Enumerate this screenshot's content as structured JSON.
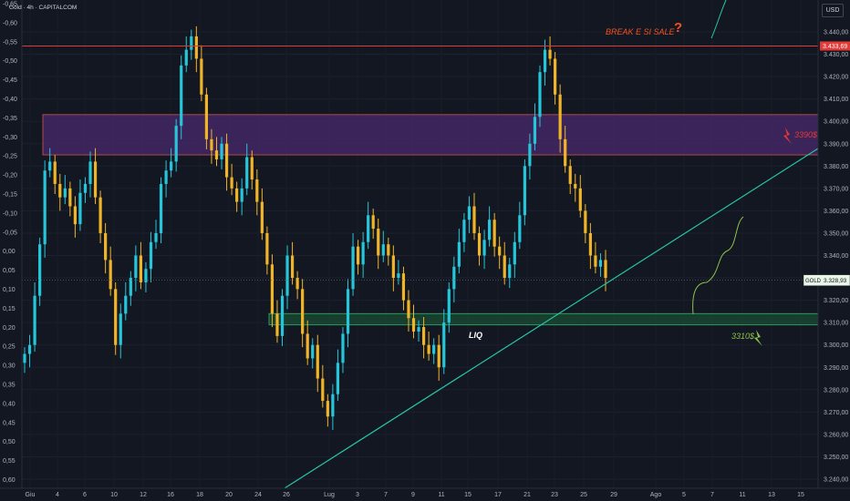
{
  "header": {
    "symbol_info": "Gold · 4h · CAPITALCOM",
    "currency": "USD"
  },
  "price_tag": {
    "symbol": "GOLD",
    "last_price": "3.328,93",
    "red_line_price": "3.433,69"
  },
  "annotations": {
    "break_text": "BREAK E SI SALE",
    "question_mark": "?",
    "zone_high_label": "3390$",
    "zone_low_label": "3310$",
    "liq_label": "LIQ"
  },
  "colors": {
    "up": "#26c6da",
    "down": "#f0b429",
    "background": "#131722",
    "red_level": "#e53935",
    "resistance_zone": "#4a2a6e",
    "support_zone": "#1b5e3a",
    "trendline": "#26c6a6",
    "annotation_orange": "#f4511e",
    "annotation_green": "#8bc34a"
  },
  "chart_data": {
    "type": "candlestick",
    "title": "Gold · 4h · CAPITALCOM",
    "right_axis": {
      "unit": "USD",
      "range": [
        3237,
        3446
      ],
      "ticks": [
        "3.440,00",
        "3.430,00",
        "3.420,00",
        "3.410,00",
        "3.400,00",
        "3.390,00",
        "3.380,00",
        "3.370,00",
        "3.360,00",
        "3.350,00",
        "3.340,00",
        "3.330,00",
        "3.320,00",
        "3.310,00",
        "3.300,00",
        "3.290,00",
        "3.280,00",
        "3.270,00",
        "3.260,00",
        "3.250,00",
        "3.240,00"
      ]
    },
    "left_axis": {
      "ticks": [
        "-0,65",
        "-0,60",
        "-0,55",
        "-0,50",
        "-0,45",
        "-0,40",
        "-0,35",
        "-0,30",
        "-0,25",
        "-0,20",
        "-0,15",
        "-0,10",
        "-0,05",
        "0,00",
        "0,05",
        "0,10",
        "0,15",
        "0,20",
        "0,25",
        "0,30",
        "0,35",
        "0,40",
        "0,45",
        "0,50",
        "0,55",
        "0,60"
      ]
    },
    "x_axis": {
      "ticks": [
        "Giu",
        "4",
        "6",
        "10",
        "12",
        "16",
        "18",
        "20",
        "24",
        "26",
        "Lug",
        "3",
        "7",
        "9",
        "11",
        "15",
        "17",
        "21",
        "23",
        "25",
        "29",
        "Ago",
        "5",
        "7",
        "11",
        "13",
        "15"
      ]
    },
    "levels": {
      "red_line": 3433.69,
      "resistance_zone": [
        3385,
        3403
      ],
      "support_zone": [
        3309,
        3314
      ],
      "last_price": 3328.93
    },
    "trendline": {
      "from": [
        "Jun 26",
        3236
      ],
      "to": [
        "Aug 15",
        3389
      ]
    },
    "closes_approx": [
      3296,
      3300,
      3322,
      3345,
      3378,
      3382,
      3372,
      3366,
      3370,
      3362,
      3354,
      3368,
      3372,
      3382,
      3366,
      3350,
      3338,
      3325,
      3300,
      3314,
      3322,
      3330,
      3340,
      3328,
      3334,
      3346,
      3350,
      3372,
      3378,
      3382,
      3398,
      3425,
      3432,
      3438,
      3428,
      3412,
      3392,
      3387,
      3383,
      3390,
      3375,
      3370,
      3364,
      3370,
      3384,
      3374,
      3364,
      3350,
      3336,
      3314,
      3304,
      3322,
      3340,
      3330,
      3325,
      3305,
      3294,
      3300,
      3285,
      3275,
      3268,
      3278,
      3292,
      3305,
      3325,
      3344,
      3336,
      3346,
      3358,
      3352,
      3340,
      3345,
      3340,
      3330,
      3332,
      3320,
      3312,
      3306,
      3308,
      3300,
      3296,
      3300,
      3290,
      3310,
      3325,
      3335,
      3346,
      3356,
      3362,
      3350,
      3340,
      3347,
      3356,
      3344,
      3340,
      3330,
      3336,
      3346,
      3358,
      3380,
      3390,
      3402,
      3422,
      3432,
      3428,
      3412,
      3392,
      3380,
      3372,
      3370,
      3360,
      3350,
      3340,
      3335,
      3338,
      3330
    ]
  }
}
